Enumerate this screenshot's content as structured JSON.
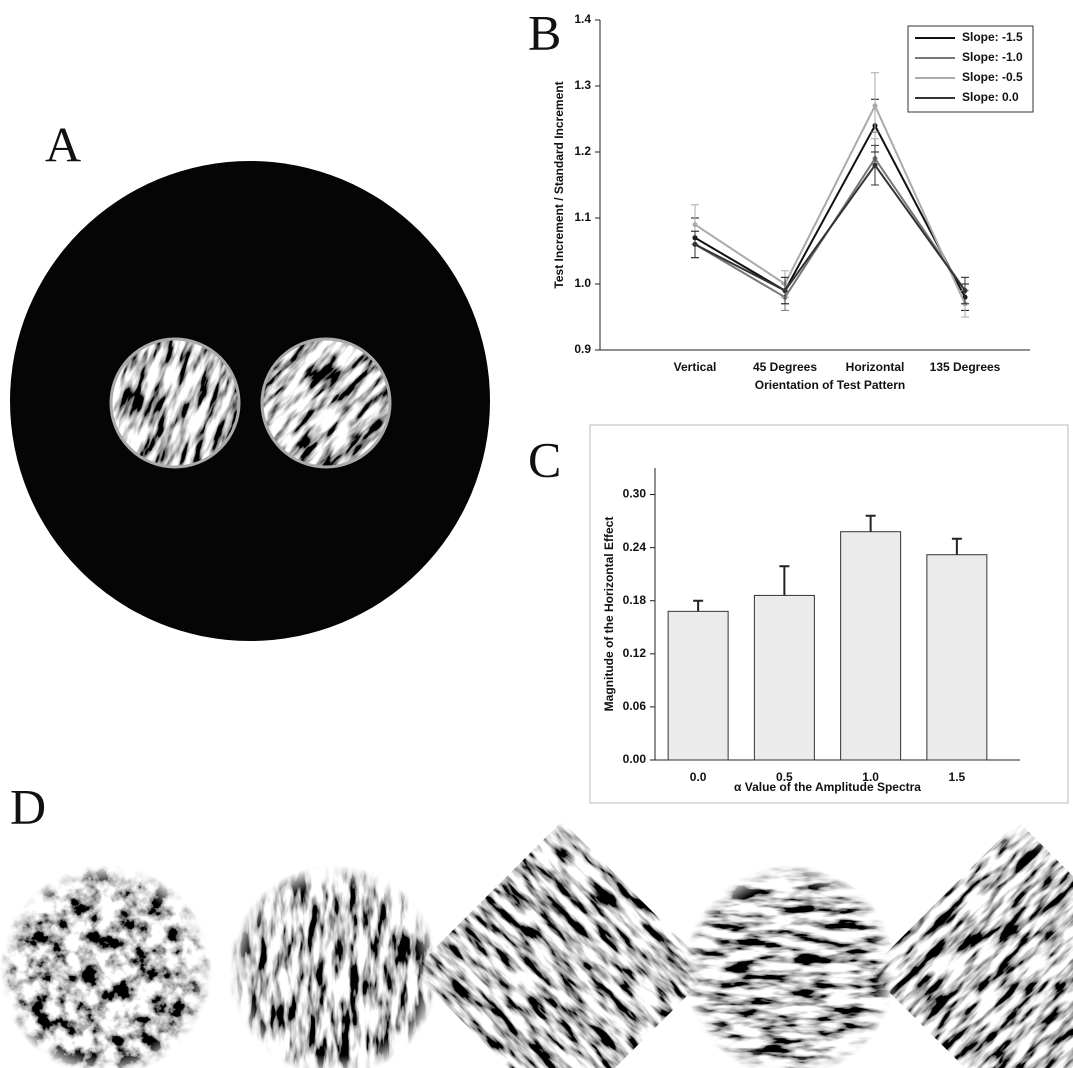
{
  "panel_labels": [
    "A",
    "B",
    "C",
    "D"
  ],
  "chart_data": [
    {
      "type": "line",
      "x_label": "Orientation of Test Pattern",
      "y_label": "Test Increment / Standard Increment",
      "categories": [
        "Vertical",
        "45 Degrees",
        "Horizontal",
        "135 Degrees"
      ],
      "ylim": [
        0.9,
        1.4
      ],
      "yticks": [
        0.9,
        {
          "value": 1,
          "label": "1.0"
        },
        1.1,
        1.2,
        1.3,
        1.4
      ],
      "legend": "upper right",
      "series": [
        {
          "name": "Slope: -1.5",
          "color": "#111111",
          "values": [
            1.07,
            0.99,
            1.24,
            0.98
          ],
          "errors": [
            0.03,
            0.02,
            0.04,
            0.02
          ]
        },
        {
          "name": "Slope: -1.0",
          "color": "#777777",
          "values": [
            1.06,
            0.98,
            1.19,
            0.99
          ],
          "errors": [
            0.02,
            0.02,
            0.04,
            0.02
          ]
        },
        {
          "name": "Slope: -0.5",
          "color": "#aaaaaa",
          "values": [
            1.09,
            1.0,
            1.27,
            0.97
          ],
          "errors": [
            0.03,
            0.02,
            0.05,
            0.02
          ]
        },
        {
          "name": "Slope: 0.0",
          "color": "#333333",
          "values": [
            1.06,
            0.99,
            1.18,
            0.99
          ],
          "errors": [
            0.02,
            0.02,
            0.03,
            0.02
          ]
        }
      ]
    },
    {
      "type": "bar",
      "x_label": "α Value of the Amplitude Spectra",
      "y_label": "Magnitude of the Horizontal Effect",
      "categories": [
        "0.0",
        "0.5",
        "1.0",
        "1.5"
      ],
      "values": [
        0.168,
        0.186,
        0.258,
        0.232
      ],
      "errors": [
        0.012,
        0.033,
        0.018,
        0.018
      ],
      "color": "#ebebeb",
      "ylim": [
        0,
        0.33
      ],
      "yticks": [
        {
          "value": 0,
          "label": "0.00"
        },
        {
          "value": 0.06,
          "label": "0.06"
        },
        {
          "value": 0.12,
          "label": "0.12"
        },
        {
          "value": 0.18,
          "label": "0.18"
        },
        {
          "value": 0.24,
          "label": "0.24"
        },
        {
          "value": 0.3,
          "label": "0.30"
        }
      ]
    }
  ]
}
